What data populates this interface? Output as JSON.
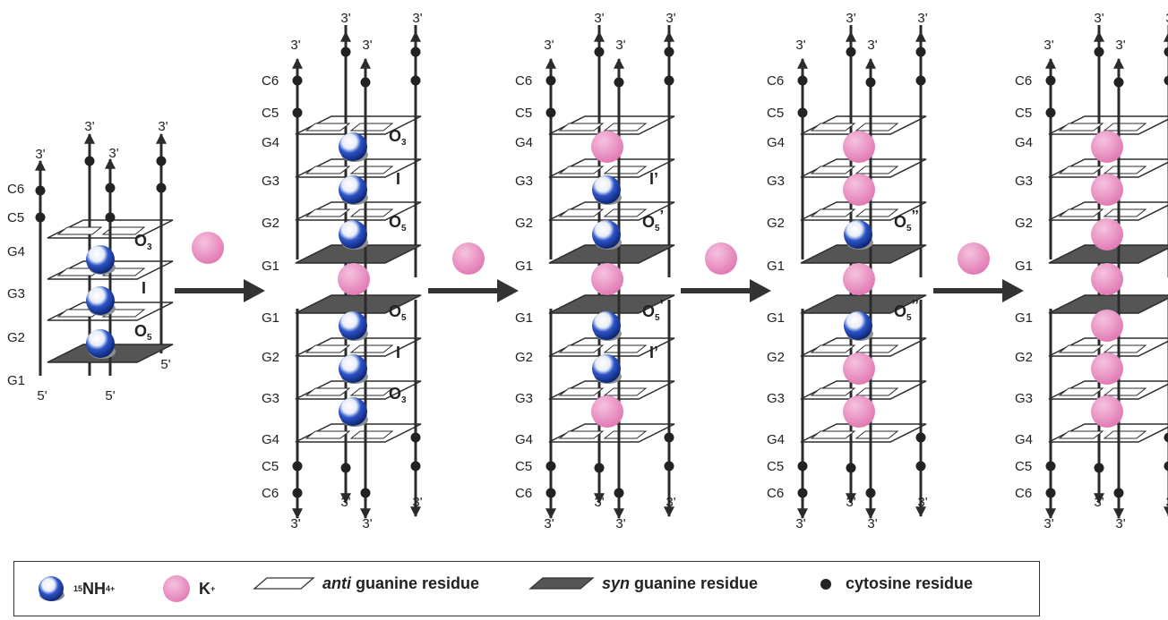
{
  "colors": {
    "ammonium": "#1a3fa8",
    "potassium": "#e888bd",
    "frame": "#2b2b2b",
    "syn_plane": "#555555"
  },
  "strand_end_label": "3'",
  "strand_start_label": "5'",
  "residue_labels": {
    "g1": "G1",
    "g2": "G2",
    "g3": "G3",
    "g4": "G4",
    "c5": "C5",
    "c6": "C6"
  },
  "site_labels": {
    "o3": "O",
    "o3_sub": "3",
    "i": "I",
    "o5": "O",
    "o5_sub": "5",
    "i_prime": "I’",
    "o5_prime": "O",
    "o5_prime_sub": "5",
    "o5_prime_mark": "’",
    "o5_dprime_mark": "’’"
  },
  "legend": {
    "ammonium_sup": "15",
    "ammonium_main": "NH",
    "ammonium_sub": "4",
    "ammonium_charge": "+",
    "potassium_main": "K",
    "potassium_charge": "+",
    "anti_italic": "anti",
    "anti_rest": "guanine residue",
    "syn_italic": "syn",
    "syn_rest": "guanine residue",
    "cytosine": "cytosine residue"
  }
}
